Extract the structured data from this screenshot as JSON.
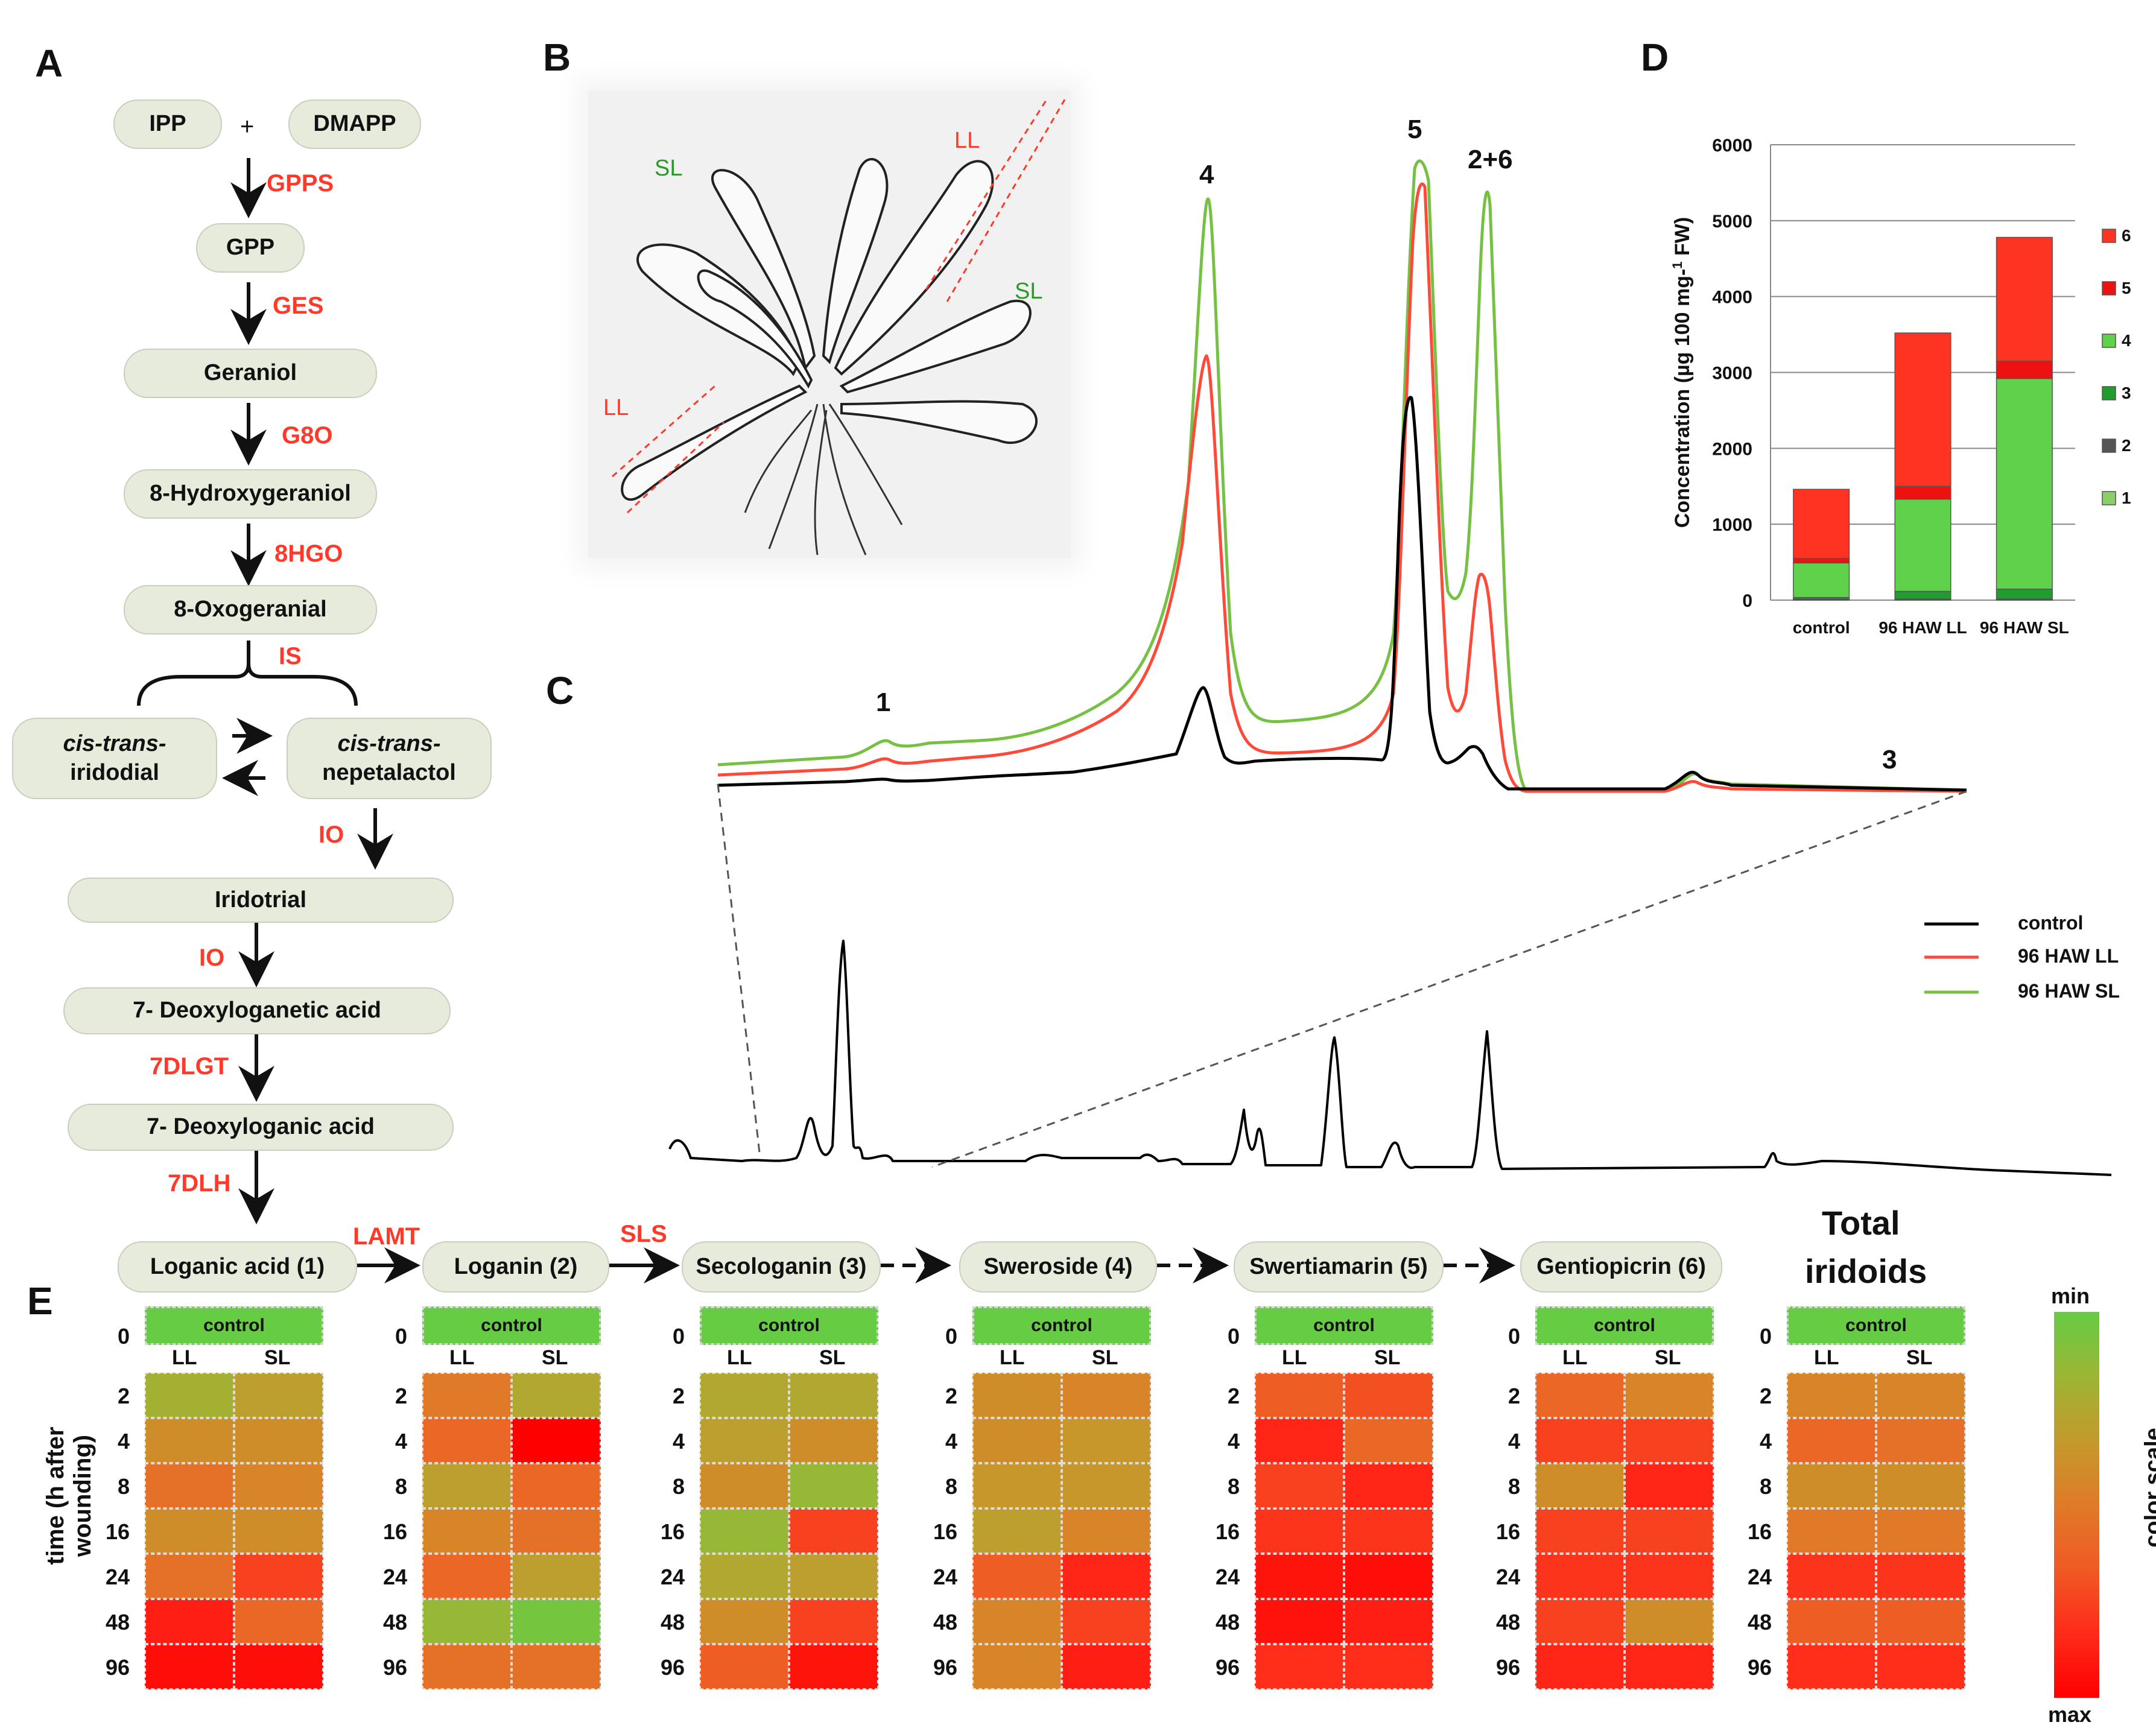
{
  "panels": {
    "a": "A",
    "b": "B",
    "c": "C",
    "d": "D",
    "e": "E"
  },
  "pathway": {
    "ipp": "IPP",
    "plus": "+",
    "dmapp": "DMAPP",
    "gpp": "GPP",
    "geraniol": "Geraniol",
    "hydroxygeraniol": "8-Hydroxygeraniol",
    "oxogeranial": "8-Oxogeranial",
    "iridodial_a": "cis-trans-",
    "iridodial_b": "iridodial",
    "nepetalactol_a": "cis-trans-",
    "nepetalactol_b": "nepetalactol",
    "iridotrial": "Iridotrial",
    "deoxyloganetic": "7- Deoxyloganetic acid",
    "deoxyloganic": "7- Deoxyloganic acid",
    "enzymes": {
      "gpps": "GPPS",
      "ges": "GES",
      "g8o": "G8O",
      "hgo": "8HGO",
      "is": "IS",
      "io1": "IO",
      "io2": "IO",
      "dlgt": "7DLGT",
      "dlh": "7DLH",
      "lamt": "LAMT",
      "sls": "SLS"
    }
  },
  "compounds": [
    "Loganic acid (1)",
    "Loganin (2)",
    "Secologanin (3)",
    "Sweroside (4)",
    "Swertiamarin (5)",
    "Gentiopicrin (6)"
  ],
  "plant": {
    "sl1": "SL",
    "sl2": "SL",
    "ll1": "LL",
    "ll2": "LL"
  },
  "chromatogram": {
    "peak_labels": [
      "1",
      "4",
      "5",
      "2+6",
      "3"
    ],
    "legend": [
      {
        "name": "control",
        "color": "#000000"
      },
      {
        "name": "96 HAW LL",
        "color": "#ff4a3a"
      },
      {
        "name": "96 HAW SL",
        "color": "#76c043"
      }
    ]
  },
  "chart_data": {
    "type": "bar",
    "stacked": true,
    "categories": [
      "control",
      "96 HAW LL",
      "96 HAW SL"
    ],
    "ylabel": "Concentration (µg 100 mg-1 FW)",
    "ylim": [
      0,
      6000
    ],
    "yticks": [
      "0",
      "1000",
      "2000",
      "3000",
      "4000",
      "5000",
      "6000"
    ],
    "series": [
      {
        "name": "1",
        "color": "#8ccf6a",
        "values": [
          10,
          10,
          10
        ]
      },
      {
        "name": "2",
        "color": "#555555",
        "values": [
          5,
          5,
          5
        ]
      },
      {
        "name": "3",
        "color": "#1f9e2e",
        "values": [
          20,
          100,
          130
        ]
      },
      {
        "name": "4",
        "color": "#5fd14a",
        "values": [
          455,
          1215,
          2775
        ]
      },
      {
        "name": "5",
        "color": "#ee1111",
        "values": [
          60,
          170,
          230
        ]
      },
      {
        "name": "6",
        "color": "#ff3322",
        "values": [
          910,
          2020,
          1630
        ]
      }
    ],
    "legend_order": [
      "6",
      "5",
      "4",
      "3",
      "2",
      "1"
    ]
  },
  "heatmap": {
    "title_a": "Total",
    "title_b": "iridoids",
    "control_label": "control",
    "zero_label": "0",
    "ll": "LL",
    "sl": "SL",
    "ylabel": "time (h after wounding)",
    "times": [
      "2",
      "4",
      "8",
      "16",
      "24",
      "48",
      "96"
    ],
    "scale_min": "min",
    "scale_max": "max",
    "scale_label": "color  scale",
    "values": [
      [
        [
          0.2,
          0.3
        ],
        [
          0.4,
          0.4
        ],
        [
          0.55,
          0.45
        ],
        [
          0.4,
          0.4
        ],
        [
          0.55,
          0.75
        ],
        [
          0.88,
          0.6
        ],
        [
          0.95,
          0.95
        ]
      ],
      [
        [
          0.5,
          0.25
        ],
        [
          0.6,
          1.0
        ],
        [
          0.3,
          0.6
        ],
        [
          0.45,
          0.55
        ],
        [
          0.6,
          0.3
        ],
        [
          0.15,
          0.05
        ],
        [
          0.55,
          0.55
        ]
      ],
      [
        [
          0.25,
          0.25
        ],
        [
          0.3,
          0.4
        ],
        [
          0.4,
          0.15
        ],
        [
          0.15,
          0.75
        ],
        [
          0.25,
          0.3
        ],
        [
          0.4,
          0.75
        ],
        [
          0.65,
          0.92
        ]
      ],
      [
        [
          0.4,
          0.45
        ],
        [
          0.4,
          0.35
        ],
        [
          0.35,
          0.35
        ],
        [
          0.3,
          0.45
        ],
        [
          0.65,
          0.85
        ],
        [
          0.45,
          0.75
        ],
        [
          0.45,
          0.88
        ]
      ],
      [
        [
          0.65,
          0.7
        ],
        [
          0.85,
          0.6
        ],
        [
          0.75,
          0.85
        ],
        [
          0.8,
          0.8
        ],
        [
          0.92,
          0.95
        ],
        [
          0.93,
          0.88
        ],
        [
          0.82,
          0.82
        ]
      ],
      [
        [
          0.6,
          0.45
        ],
        [
          0.75,
          0.75
        ],
        [
          0.4,
          0.85
        ],
        [
          0.75,
          0.75
        ],
        [
          0.8,
          0.8
        ],
        [
          0.75,
          0.4
        ],
        [
          0.85,
          0.85
        ]
      ],
      [
        [
          0.45,
          0.45
        ],
        [
          0.6,
          0.55
        ],
        [
          0.4,
          0.4
        ],
        [
          0.5,
          0.5
        ],
        [
          0.8,
          0.8
        ],
        [
          0.65,
          0.65
        ],
        [
          0.82,
          0.82
        ]
      ]
    ]
  }
}
